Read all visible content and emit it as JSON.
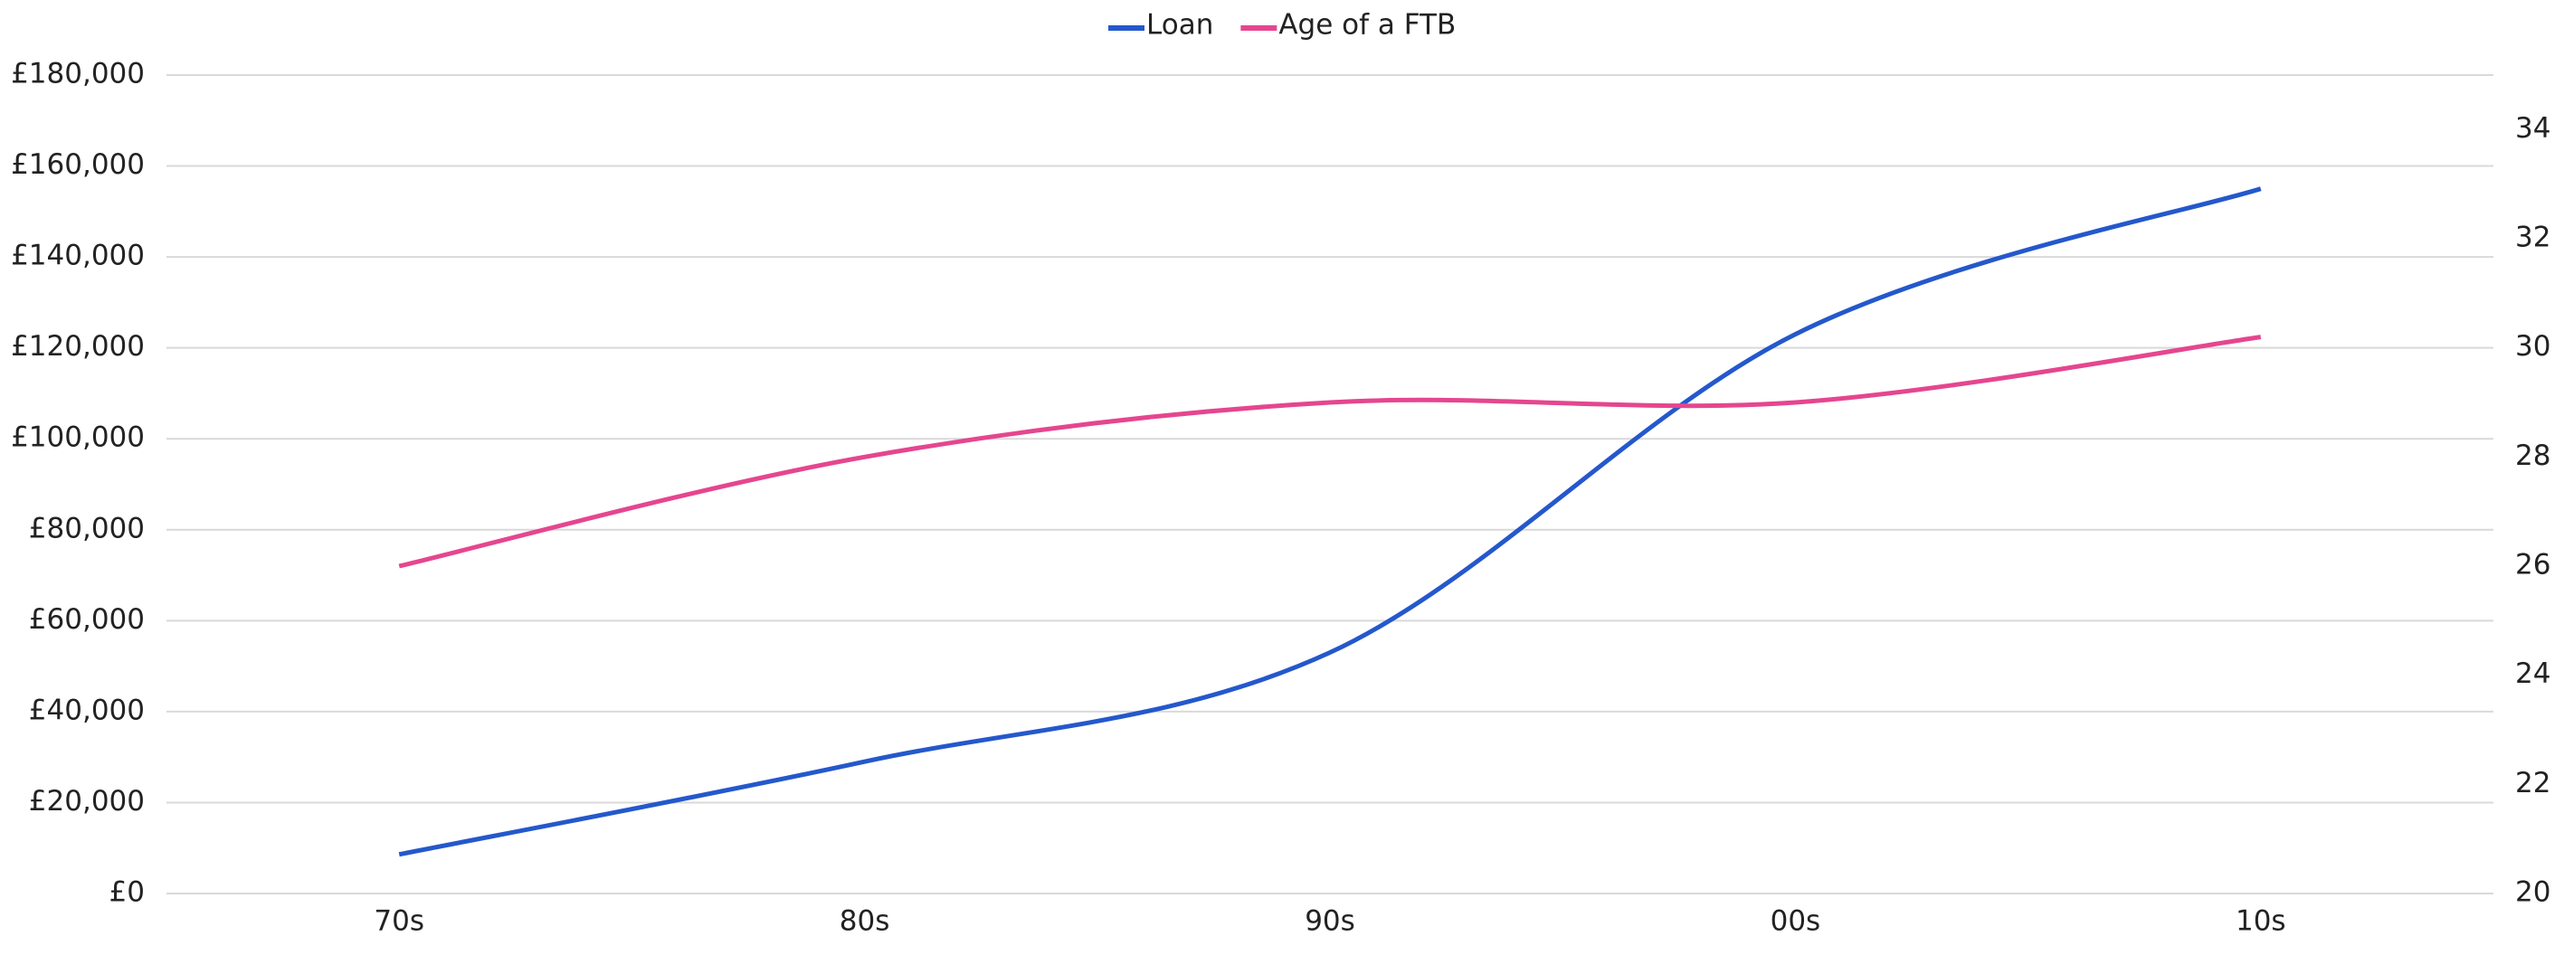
{
  "chart_data": {
    "type": "line",
    "categories": [
      "70s",
      "80s",
      "90s",
      "00s",
      "10s"
    ],
    "series": [
      {
        "name": "Loan",
        "color": "#2458cc",
        "values": [
          8600,
          29000,
          53000,
          123000,
          155000
        ]
      },
      {
        "name": "Age of a FTB",
        "color": "#e5468f",
        "axis": "y2",
        "values": [
          26,
          28,
          29,
          29,
          30.2
        ]
      }
    ],
    "ylim": [
      0,
      180000
    ],
    "yticks": [
      {
        "value": 0,
        "label": "£0"
      },
      {
        "value": 20000,
        "label": "£20,000"
      },
      {
        "value": 40000,
        "label": "£40,000"
      },
      {
        "value": 60000,
        "label": "£60,000"
      },
      {
        "value": 80000,
        "label": "£80,000"
      },
      {
        "value": 100000,
        "label": "£100,000"
      },
      {
        "value": 120000,
        "label": "£120,000"
      },
      {
        "value": 140000,
        "label": "£140,000"
      },
      {
        "value": 160000,
        "label": "£160,000"
      },
      {
        "value": 180000,
        "label": "£180,000"
      }
    ],
    "y2lim": [
      20,
      35
    ],
    "y2ticks": [
      20,
      22,
      24,
      26,
      28,
      30,
      32,
      34
    ],
    "grid": true,
    "legend": "top"
  }
}
